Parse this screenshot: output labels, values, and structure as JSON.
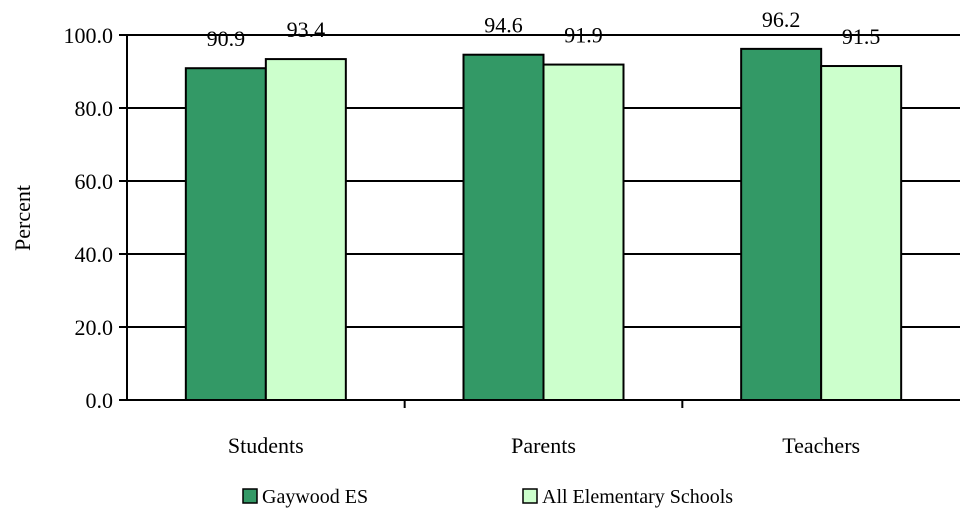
{
  "chart_data": {
    "type": "bar",
    "title": "",
    "xlabel": "",
    "ylabel": "Percent",
    "ylim": [
      0,
      100
    ],
    "yticks": [
      "0.0",
      "20.0",
      "40.0",
      "60.0",
      "80.0",
      "100.0"
    ],
    "grid": true,
    "legend_position": "bottom",
    "categories": [
      "Students",
      "Parents",
      "Teachers"
    ],
    "series": [
      {
        "name": "Gaywood ES",
        "values": [
          90.9,
          94.6,
          96.2
        ],
        "labels": [
          "90.9",
          "94.6",
          "96.2"
        ],
        "color": "#339966"
      },
      {
        "name": "All Elementary Schools",
        "values": [
          93.4,
          91.9,
          91.5
        ],
        "labels": [
          "93.4",
          "91.9",
          "91.5"
        ],
        "color": "#ccffcc"
      }
    ]
  }
}
